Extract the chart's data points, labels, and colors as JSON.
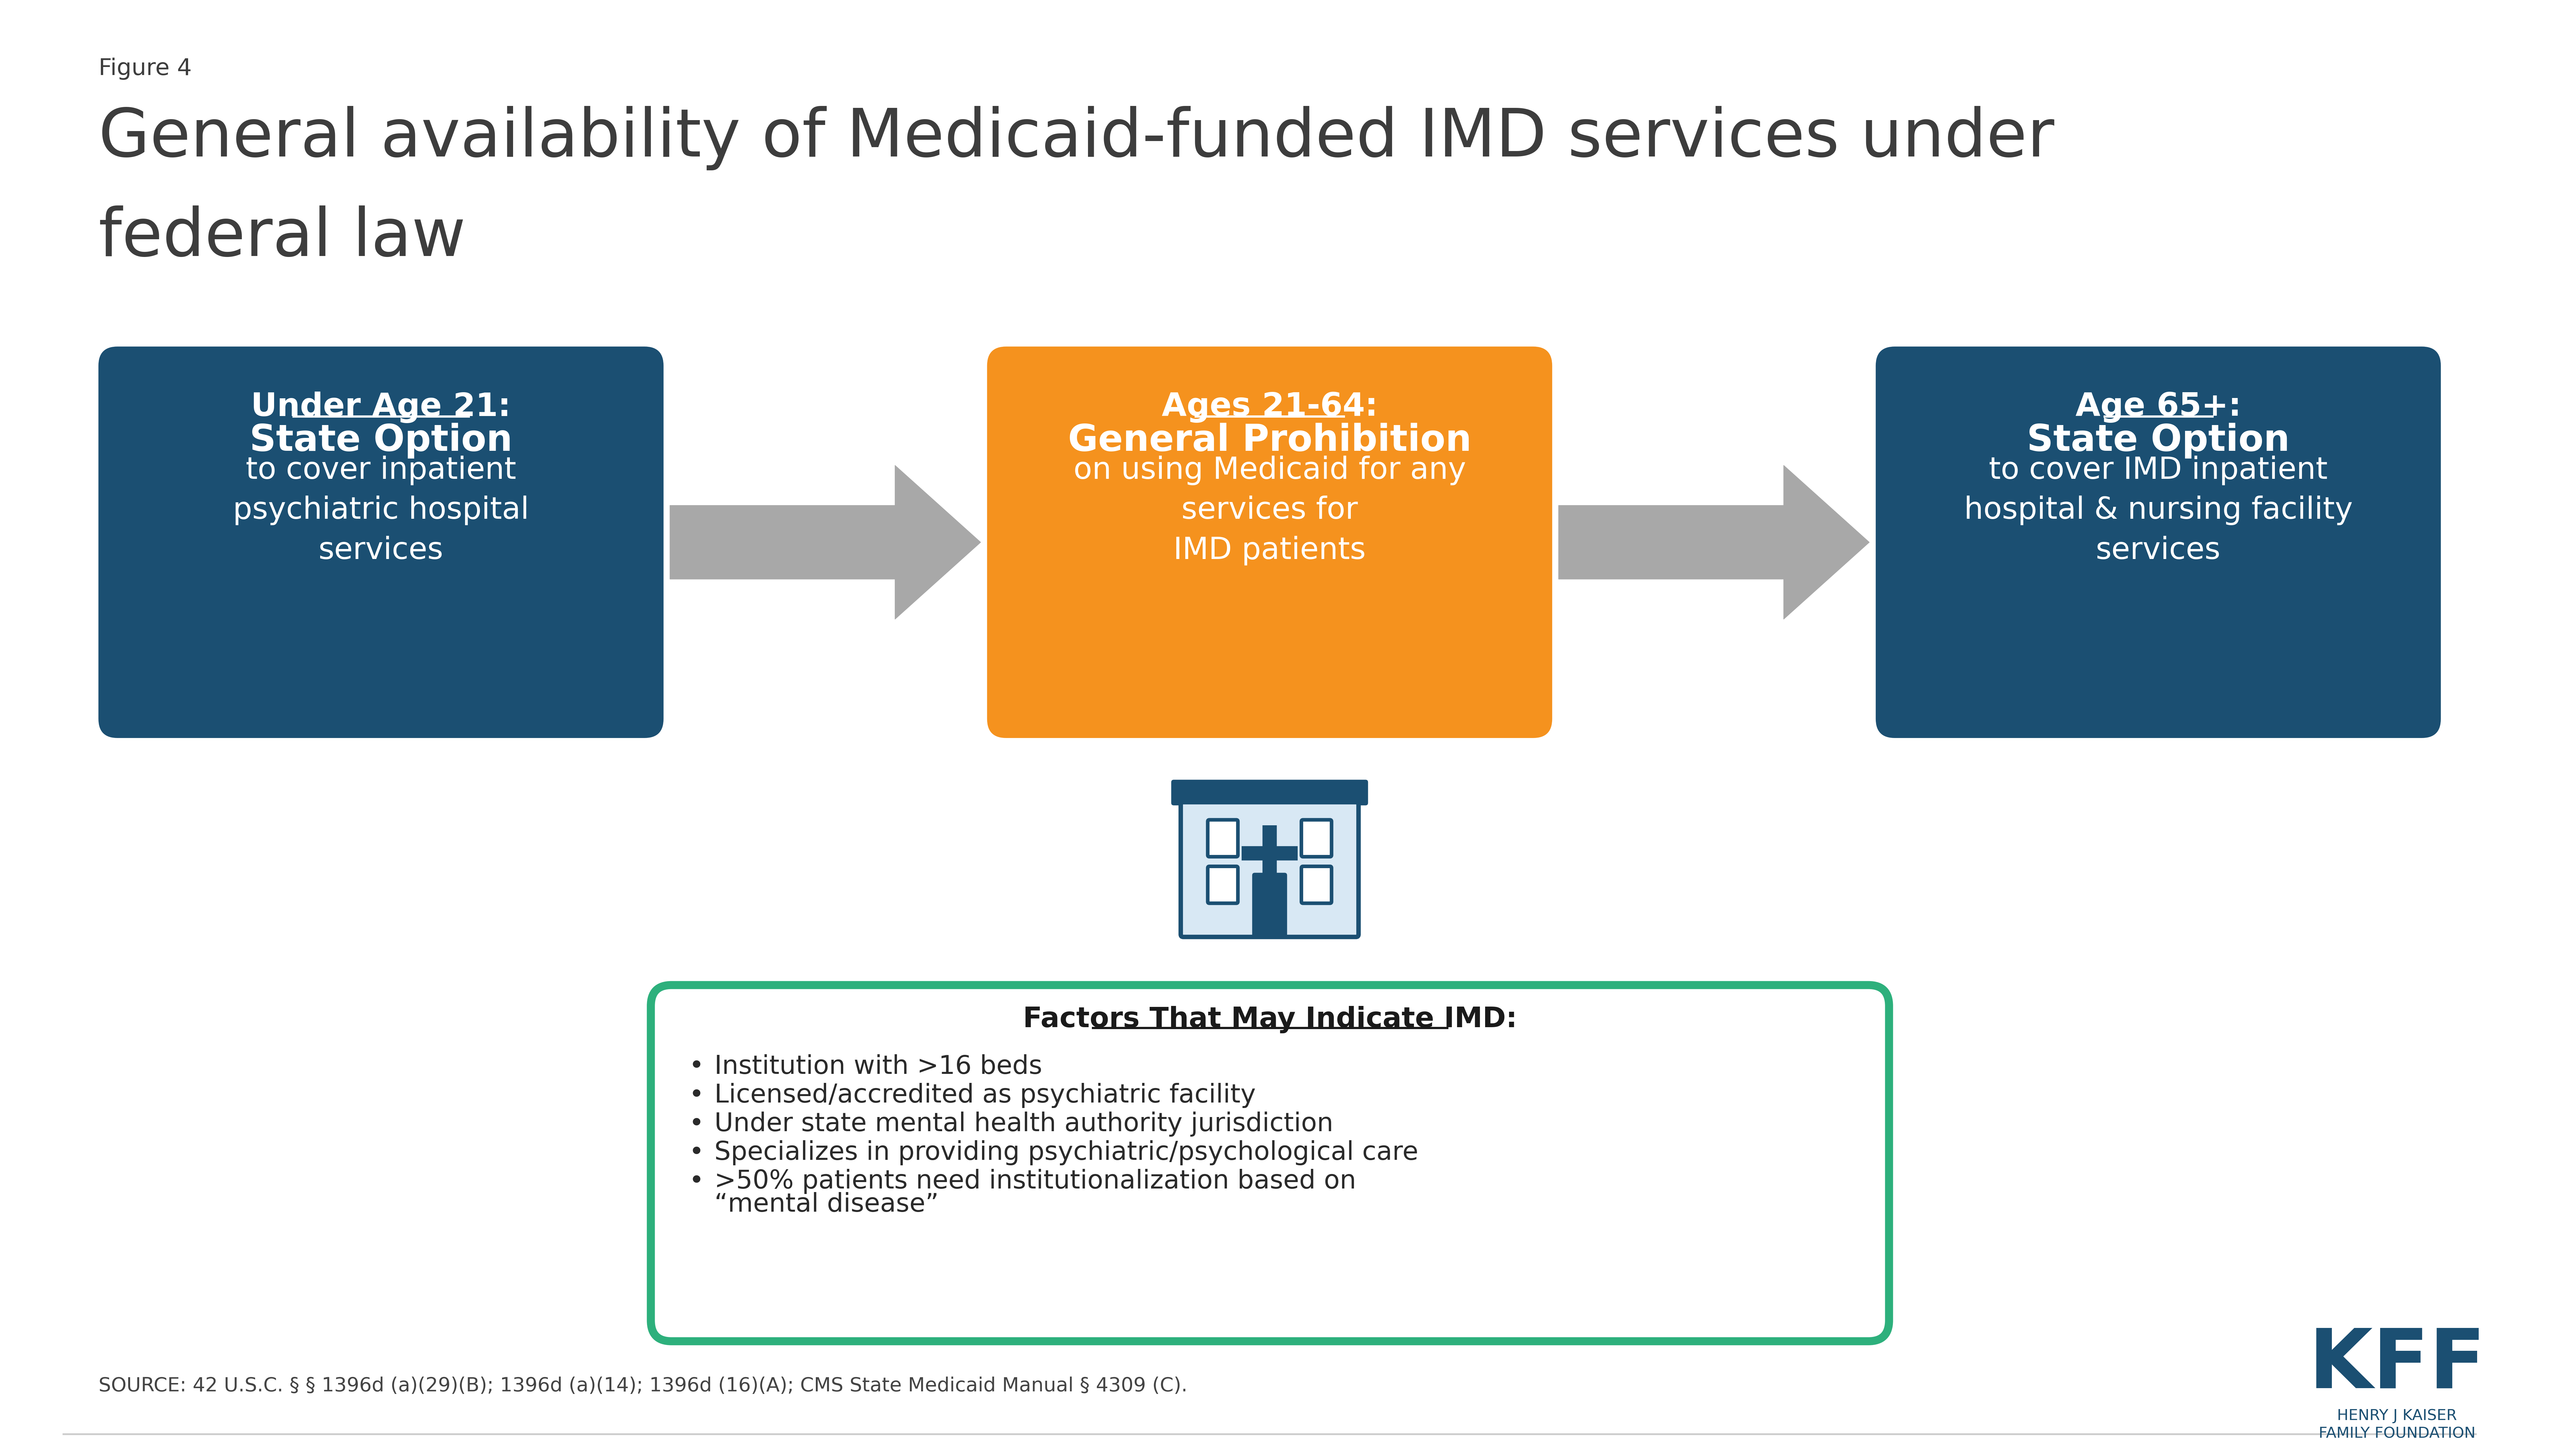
{
  "figure_label": "Figure 4",
  "title_line1": "General availability of Medicaid-funded IMD services under",
  "title_line2": "federal law",
  "background_color": "#ffffff",
  "box1_color": "#1b4f72",
  "box2_color": "#f5921e",
  "box3_color": "#1b4f72",
  "box1_title": "Under Age 21:",
  "box1_bold": "State Option",
  "box1_body": "to cover inpatient\npsychiatric hospital\nservices",
  "box2_title": "Ages 21-64:",
  "box2_bold": "General Prohibition",
  "box2_body": "on using Medicaid for any\nservices for\nIMD patients",
  "box3_title": "Age 65+:",
  "box3_bold": "State Option",
  "box3_body": "to cover IMD inpatient\nhospital & nursing facility\nservices",
  "white": "#ffffff",
  "arrow_color": "#a8a8a8",
  "dark_blue": "#1b4f72",
  "green_border": "#2db07c",
  "factors_title": "Factors That May Indicate IMD:",
  "factors_items": [
    "Institution with >16 beds",
    "Licensed/accredited as psychiatric facility",
    "Under state mental health authority jurisdiction",
    "Specializes in providing psychiatric/psychological care",
    ">50% patients need institutionalization based on\n“mental disease”"
  ],
  "source_text": "SOURCE: 42 U.S.C. § § 1396d (a)(29)(B); 1396d (a)(14); 1396d (16)(A); CMS State Medicaid Manual § 4309 (C).",
  "dark_gray_text": "#3d3d3d"
}
